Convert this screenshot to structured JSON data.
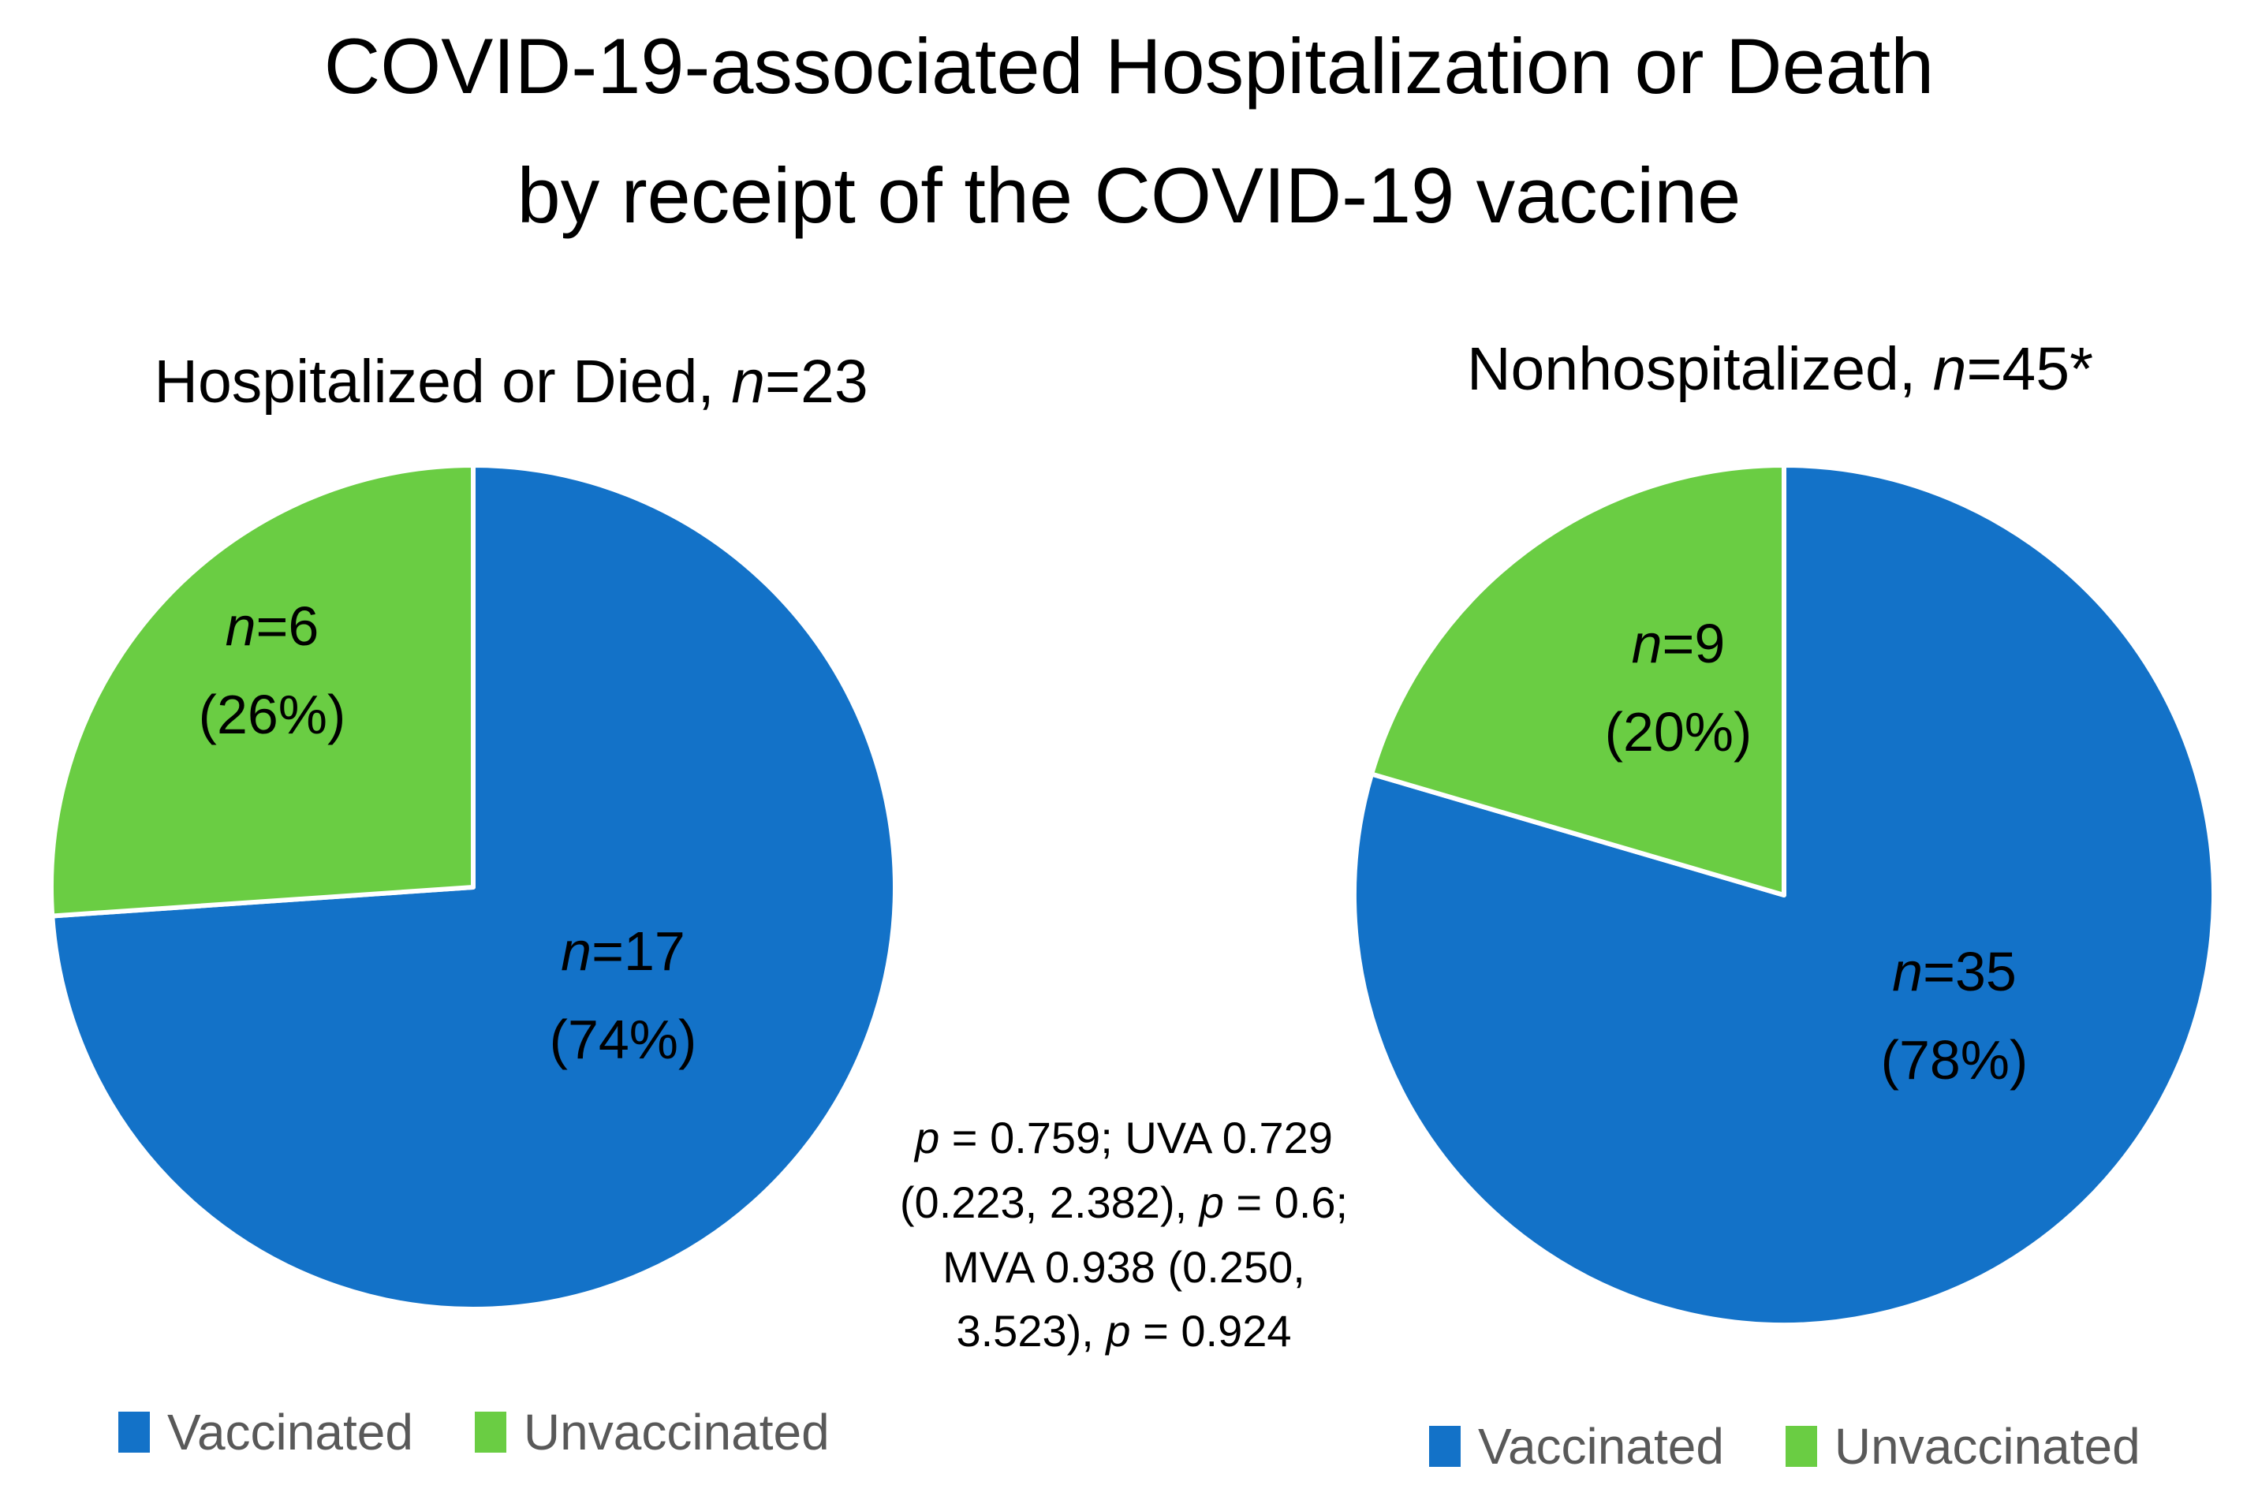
{
  "title": {
    "line1": "COVID-19-associated Hospitalization or Death",
    "line2": "by receipt of the COVID-19 vaccine"
  },
  "colors": {
    "vaccinated": "#1372C8",
    "unvaccinated": "#6ACD43",
    "legend_text": "#595959"
  },
  "annotation": {
    "lines": [
      "p = 0.759; UVA 0.729",
      "(0.223, 2.382), p = 0.6;",
      "MVA 0.938 (0.250,",
      "3.523), p = 0.924"
    ]
  },
  "chart_data": [
    {
      "type": "pie",
      "title": "Hospitalized or Died, n=23",
      "n_total": 23,
      "labels": [
        "Vaccinated",
        "Unvaccinated"
      ],
      "values": [
        17,
        6
      ],
      "percents": [
        74,
        26
      ],
      "slice_label_lines": [
        [
          "n=17",
          "(74%)"
        ],
        [
          "n=6",
          "(26%)"
        ]
      ],
      "colors": [
        "#1372C8",
        "#6ACD43"
      ],
      "legend": {
        "labels": [
          "Vaccinated",
          "Unvaccinated"
        ],
        "position": "bottom-left"
      },
      "start_angle": "top",
      "direction": "clockwise"
    },
    {
      "type": "pie",
      "title": "Nonhospitalized, n=45*",
      "n_total": 45,
      "labels": [
        "Vaccinated",
        "Unvaccinated"
      ],
      "values": [
        35,
        9
      ],
      "percents": [
        78,
        20
      ],
      "slice_label_lines": [
        [
          "n=35",
          "(78%)"
        ],
        [
          "n=9",
          "(20%)"
        ]
      ],
      "colors": [
        "#1372C8",
        "#6ACD43"
      ],
      "legend": {
        "labels": [
          "Vaccinated",
          "Unvaccinated"
        ],
        "position": "bottom-right"
      },
      "start_angle": "top",
      "direction": "clockwise"
    }
  ]
}
